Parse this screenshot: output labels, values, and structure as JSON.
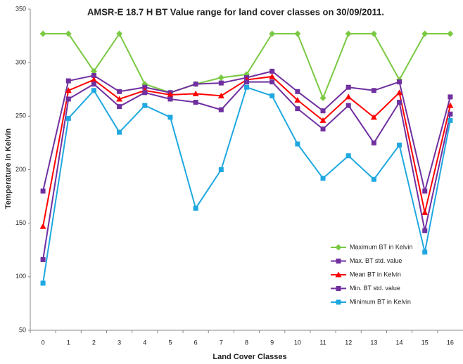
{
  "chart_data": {
    "type": "line",
    "title": "AMSR-E 18.7 H BT Value range for land cover classes on 30/09/2011.",
    "x_label": "Land Cover Classes",
    "y_label": "Temperature in Kelvin",
    "categories": [
      "0",
      "1",
      "2",
      "3",
      "4",
      "5",
      "6",
      "7",
      "8",
      "9",
      "10",
      "11",
      "12",
      "13",
      "14",
      "15",
      "16"
    ],
    "ylim": [
      50,
      350
    ],
    "yticks": [
      50,
      100,
      150,
      200,
      250,
      300,
      350
    ],
    "grid": false,
    "legend": "lower-right",
    "series": [
      {
        "name": "Maximum BT in Kelvin",
        "color": "#7ac943",
        "marker": "diamond",
        "values": [
          327,
          327,
          292,
          327,
          280,
          272,
          280,
          286,
          289,
          327,
          327,
          267,
          327,
          327,
          284,
          327,
          327
        ]
      },
      {
        "name": "Max. BT std. value",
        "color": "#7030a0",
        "marker": "square",
        "values": [
          180,
          283,
          288,
          273,
          277,
          272,
          280,
          281,
          286,
          292,
          273,
          255,
          277,
          274,
          282,
          180,
          268
        ]
      },
      {
        "name": "Mean BT in Kelvin",
        "color": "#ff0000",
        "marker": "triangle",
        "values": [
          147,
          274,
          284,
          266,
          274,
          270,
          271,
          269,
          284,
          287,
          265,
          246,
          268,
          249,
          272,
          160,
          260
        ]
      },
      {
        "name": "Min. BT std. value",
        "color": "#7030a0",
        "marker": "square",
        "values": [
          116,
          266,
          280,
          259,
          272,
          266,
          263,
          256,
          282,
          282,
          257,
          238,
          260,
          225,
          263,
          143,
          252
        ]
      },
      {
        "name": "Minimum BT in Kelvin",
        "color": "#1fa8e0",
        "marker": "square",
        "values": [
          94,
          248,
          274,
          235,
          260,
          249,
          164,
          200,
          277,
          269,
          224,
          192,
          213,
          191,
          223,
          123,
          246
        ]
      }
    ]
  }
}
